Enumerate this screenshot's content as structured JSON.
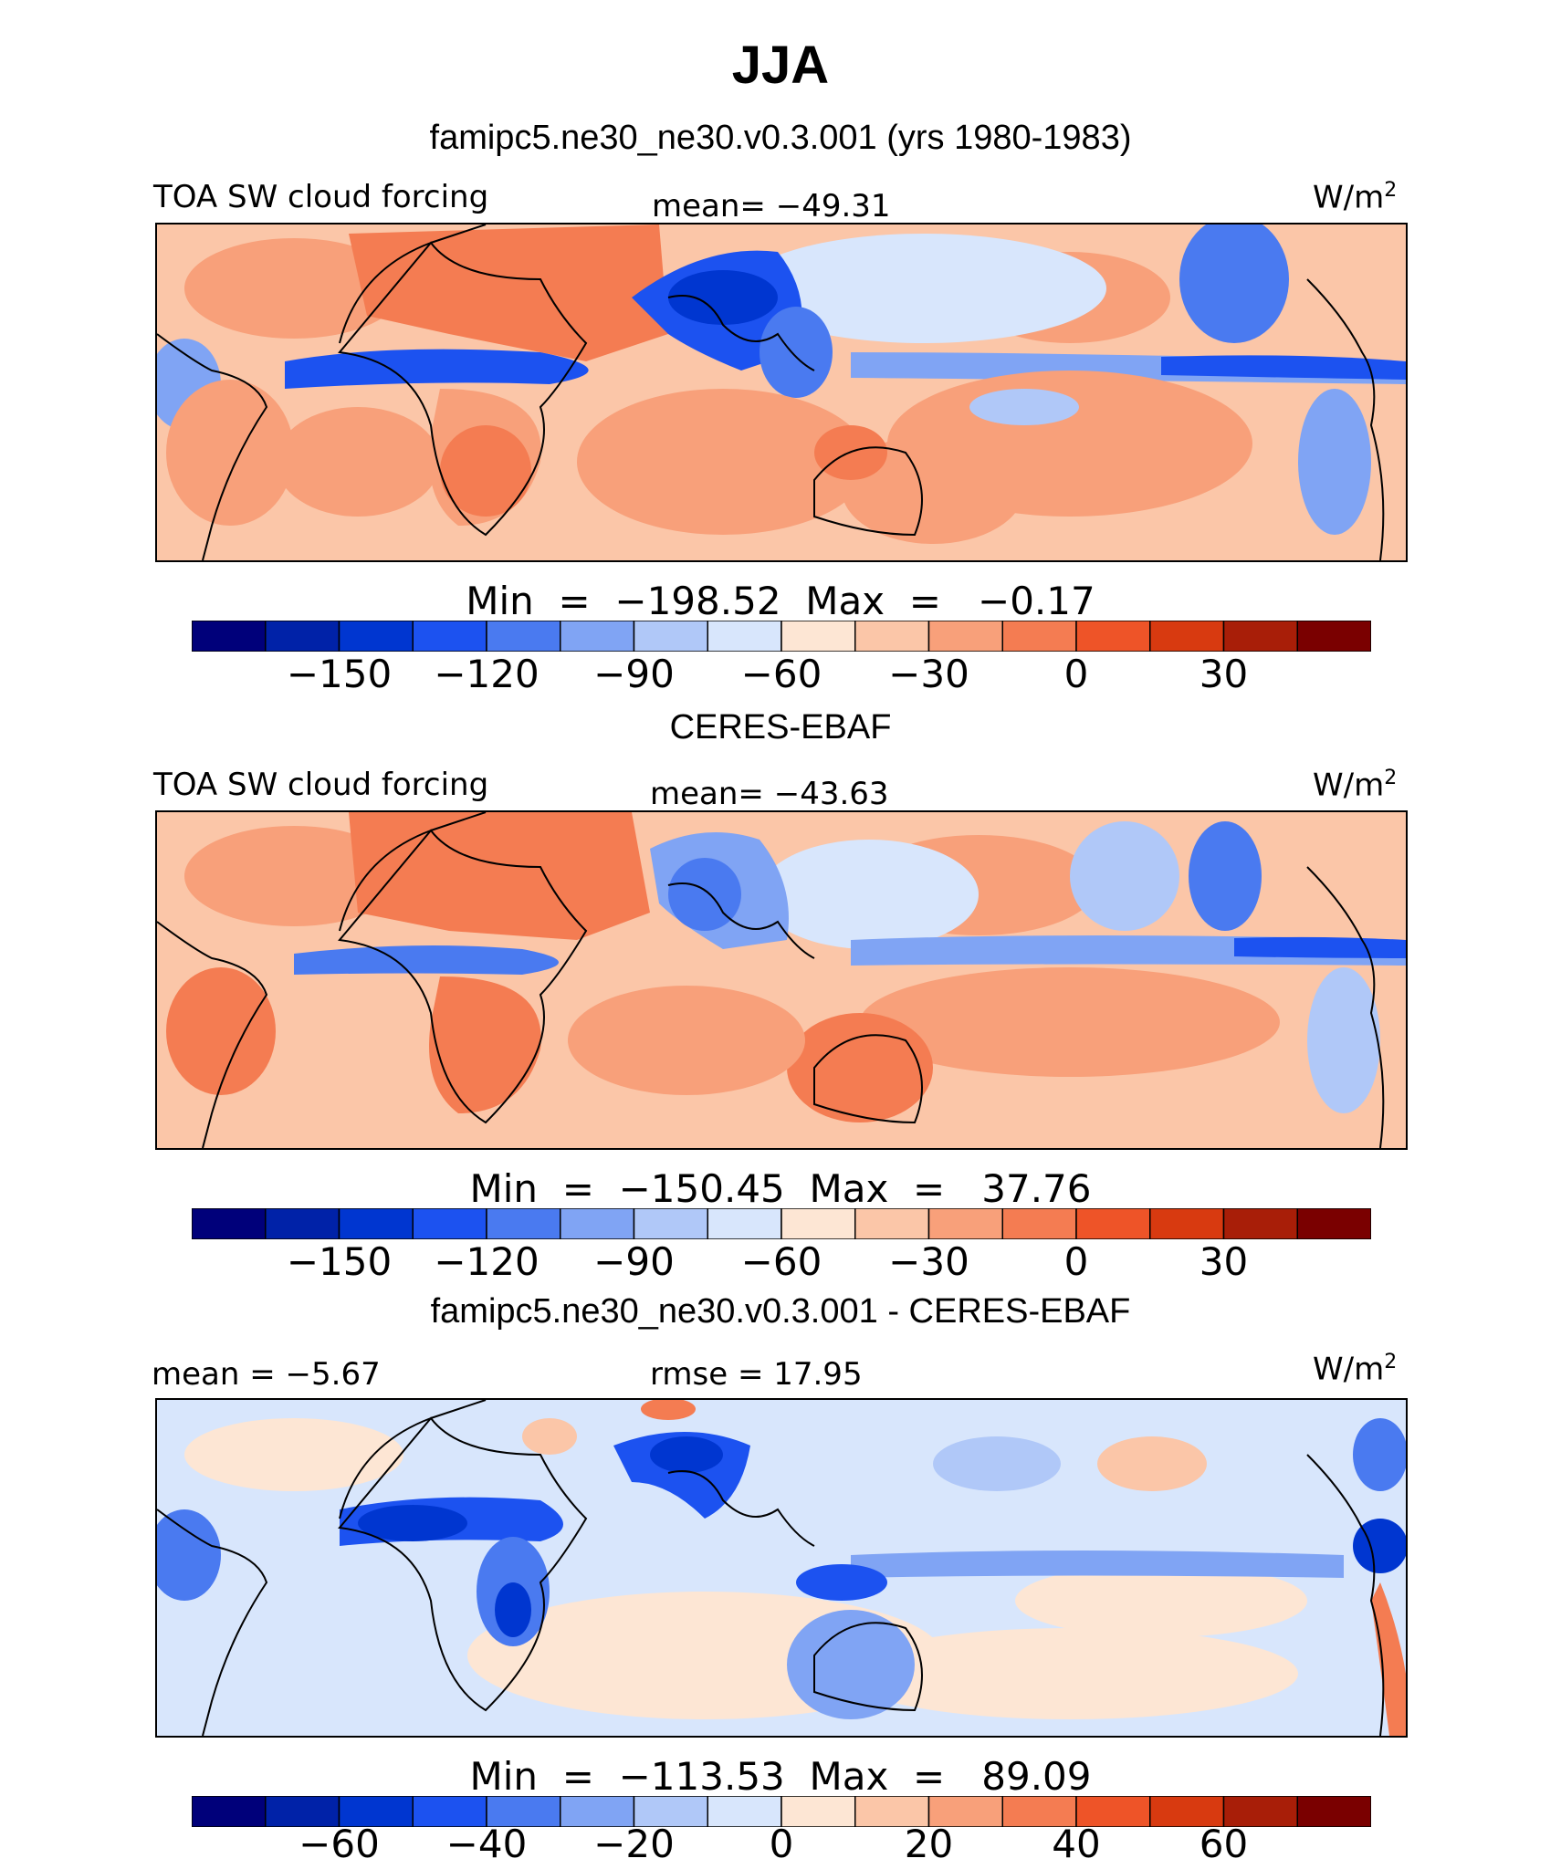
{
  "title": "JJA",
  "panels": [
    {
      "subtitle": "famipc5.ne30_ne30.v0.3.001 (yrs 1980-1983)",
      "left_label": "TOA SW cloud forcing",
      "center_label": "mean= −49.31",
      "units": "W/m",
      "units_sup": "2",
      "minmax": "Min  =  −198.52  Max  =   −0.17",
      "ticks": [
        "−150",
        "−120",
        "−90",
        "−60",
        "−30",
        "0",
        "30"
      ],
      "tick_slots": [
        2,
        4,
        6,
        8,
        10,
        12,
        14
      ]
    },
    {
      "subtitle": "CERES-EBAF",
      "left_label": "TOA SW cloud forcing",
      "center_label": "mean= −43.63",
      "units": "W/m",
      "units_sup": "2",
      "minmax": "Min  =  −150.45  Max  =   37.76",
      "ticks": [
        "−150",
        "−120",
        "−90",
        "−60",
        "−30",
        "0",
        "30"
      ],
      "tick_slots": [
        2,
        4,
        6,
        8,
        10,
        12,
        14
      ]
    },
    {
      "subtitle": "famipc5.ne30_ne30.v0.3.001 - CERES-EBAF",
      "left_label": "mean  =   −5.67",
      "center_label": "rmse  =   17.95",
      "units": "W/m",
      "units_sup": "2",
      "minmax": "Min  =  −113.53  Max  =   89.09",
      "ticks": [
        "−60",
        "−40",
        "−20",
        "0",
        "20",
        "40",
        "60"
      ],
      "tick_slots": [
        2,
        4,
        6,
        8,
        10,
        12,
        14
      ]
    }
  ],
  "colorbar_colors": [
    "#00007a",
    "#0022a8",
    "#0036d0",
    "#1c52f0",
    "#4a7af0",
    "#80a4f4",
    "#b0c8f8",
    "#d8e6fc",
    "#fde6d4",
    "#fbc6a8",
    "#f8a07a",
    "#f47c52",
    "#ee5428",
    "#d83a10",
    "#a81e08",
    "#7a0000"
  ]
}
